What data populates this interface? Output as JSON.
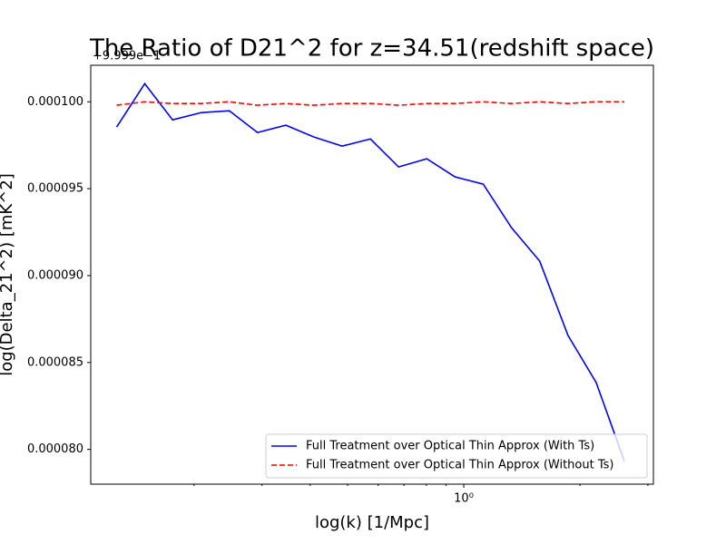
{
  "chart_data": {
    "type": "line",
    "title": "The Ratio of D21^2 for z=34.51(redshift space)",
    "xlabel": "log(k) [1/Mpc]",
    "ylabel": "log(Delta_21^2) [mK^2]",
    "offset_text": "+9.999e−1",
    "x": [
      0.126,
      0.149,
      0.176,
      0.209,
      0.247,
      0.292,
      0.346,
      0.409,
      0.484,
      0.573,
      0.678,
      0.802,
      0.949,
      1.123,
      1.329,
      1.573,
      1.862,
      2.203,
      2.607
    ],
    "series": [
      {
        "name": "Full Treatment over Optical Thin Approx (With Ts)",
        "color": "#0000ff",
        "dash": "solid",
        "values": [
          9.854e-05,
          0.00010104,
          9.896e-05,
          9.938e-05,
          9.948e-05,
          9.823e-05,
          9.865e-05,
          9.797e-05,
          9.745e-05,
          9.786e-05,
          9.625e-05,
          9.672e-05,
          9.568e-05,
          9.526e-05,
          9.276e-05,
          9.083e-05,
          8.656e-05,
          8.385e-05,
          7.932e-05
        ]
      },
      {
        "name": "Full Treatment over Optical Thin Approx (Without Ts)",
        "color": "#ff0000",
        "dash": "dashed",
        "values": [
          9.98e-05,
          0.0001,
          9.99e-05,
          9.99e-05,
          0.0001,
          9.98e-05,
          9.99e-05,
          9.98e-05,
          9.99e-05,
          9.99e-05,
          9.98e-05,
          9.99e-05,
          9.99e-05,
          0.0001,
          9.99e-05,
          0.0001,
          9.99e-05,
          0.0001,
          0.0001
        ]
      }
    ],
    "xscale": "log",
    "xlim": [
      0.108,
      3.1
    ],
    "xticks": [
      {
        "value": 1,
        "label": "10⁰"
      }
    ],
    "xticks_minor": [
      0.2,
      0.3,
      0.4,
      0.5,
      0.6,
      0.7,
      0.8,
      0.9,
      2,
      3
    ],
    "ylim": [
      7.8e-05,
      0.0001021
    ],
    "yticks": [
      {
        "value": 8e-05,
        "label": "0.000080"
      },
      {
        "value": 8.5e-05,
        "label": "0.000085"
      },
      {
        "value": 9e-05,
        "label": "0.000090"
      },
      {
        "value": 9.5e-05,
        "label": "0.000095"
      },
      {
        "value": 0.0001,
        "label": "0.000100"
      }
    ],
    "grid": false,
    "legend": "lower right"
  }
}
